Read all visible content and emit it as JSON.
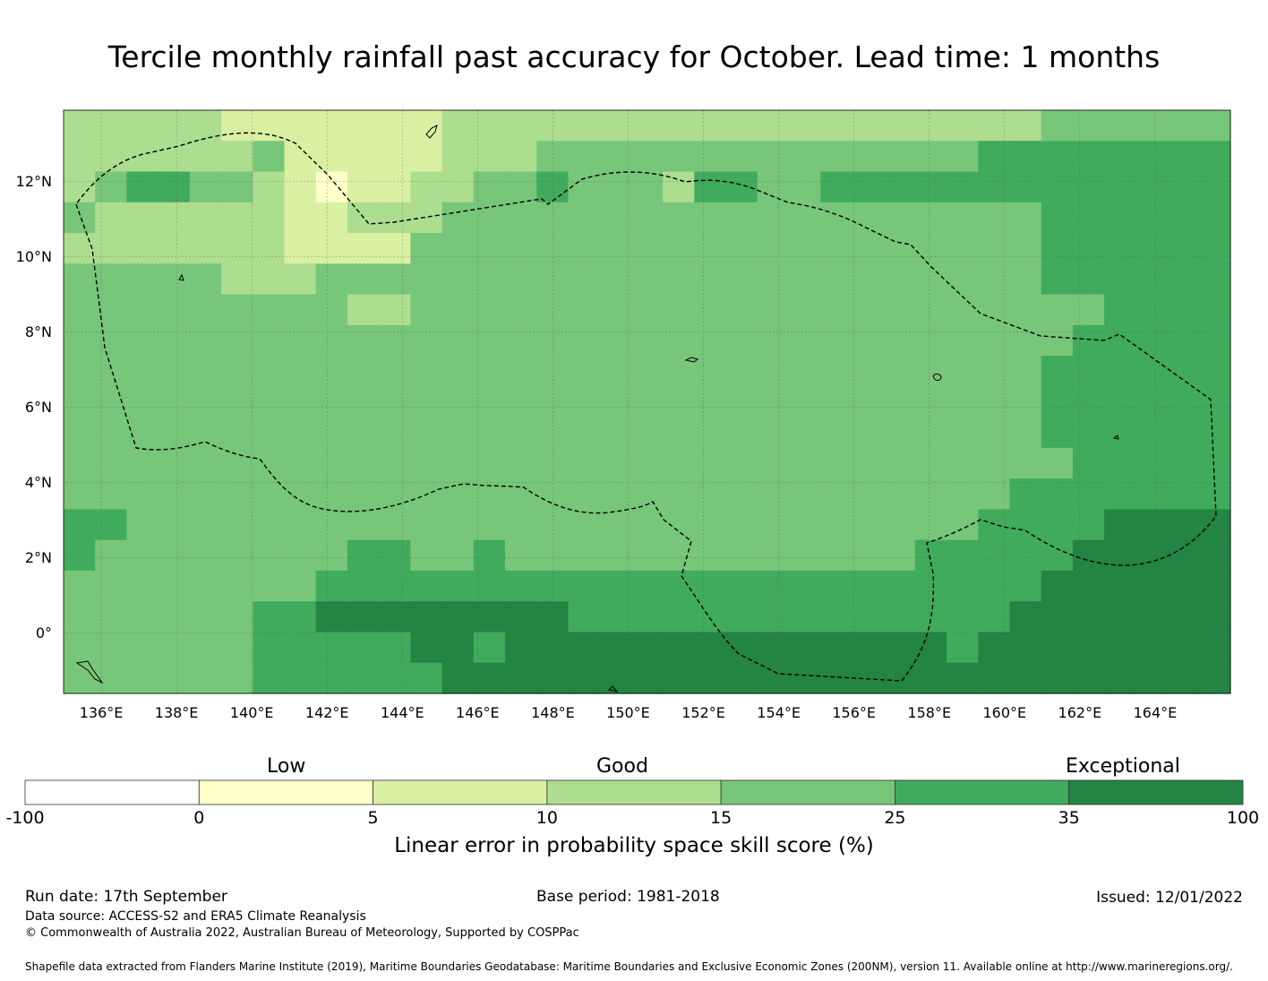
{
  "title": "Tercile monthly rainfall past accuracy for October. Lead time: 1 months",
  "map": {
    "lon_range": [
      135.0,
      166.0
    ],
    "lat_range": [
      -1.6,
      13.9
    ],
    "lat_labels": [
      "12°N",
      "10°N",
      "8°N",
      "6°N",
      "4°N",
      "2°N",
      "0°"
    ],
    "lat_values": [
      12,
      10,
      8,
      6,
      4,
      2,
      0
    ],
    "lon_labels": [
      "136°E",
      "138°E",
      "140°E",
      "142°E",
      "144°E",
      "146°E",
      "148°E",
      "150°E",
      "152°E",
      "154°E",
      "156°E",
      "158°E",
      "160°E",
      "162°E",
      "164°E"
    ],
    "lon_values": [
      136,
      138,
      140,
      142,
      144,
      146,
      148,
      150,
      152,
      154,
      156,
      158,
      160,
      162,
      164
    ],
    "grid_cols": 37,
    "grid_rows": 19,
    "grid_cells": [
      "3333322222223333333333333333333444444",
      "3333334222223334444444444444455555555",
      "3455443212233445444355445555555555555",
      "4333333223334444444444444444444555555",
      "3333333222244444444444444444444555555",
      "4444433344444444444444444444444555555",
      "4444444443344444444444444444444445555",
      "4444444444444444444444444444444455555",
      "4444444444444444444444444444444555555",
      "4444444444444444444444444444444555555",
      "4444444444444444444444444444444555555",
      "4444444444444444444444444444444455555",
      "4444444444444444444444444444445555555",
      "5544444444444444444444444444455556666",
      "5444444445544544444444444445555566666",
      "4444444455555555555555555555555666666",
      "4444445566666666555555555555556666666",
      "4444445555566566666666666666566666666",
      "4444445555556666666666666666666666666"
    ],
    "colors": [
      "#ffffff",
      "#ffffcc",
      "#d9f0a3",
      "#addd8e",
      "#78c679",
      "#41ab5d",
      "#238443"
    ]
  },
  "colorbar": {
    "categories": [
      "Low",
      "Good",
      "Exceptional"
    ],
    "ticks": [
      "-100",
      "0",
      "5",
      "10",
      "15",
      "25",
      "35",
      "100"
    ],
    "colors": [
      "#ffffff",
      "#ffffcc",
      "#d9f0a3",
      "#addd8e",
      "#78c679",
      "#41ab5d",
      "#238443"
    ],
    "title": "Linear error in probability space skill score (%)"
  },
  "footer": {
    "run_date": "Run date: 17th September",
    "base_period": "Base period: 1981-2018",
    "issued": "Issued: 12/01/2022",
    "data_source": "Data source: ACCESS-S2 and ERA5 Climate Reanalysis",
    "copyright": "© Commonwealth of Australia 2022, Australian Bureau of Meteorology, Supported by COSPPac",
    "shapefile": "Shapefile data extracted from Flanders Marine Institute (2019), Maritime Boundaries Geodatabase: Maritime Boundaries and Exclusive Economic Zones (200NM), version 11. Available online at http://www.marineregions.org/."
  }
}
